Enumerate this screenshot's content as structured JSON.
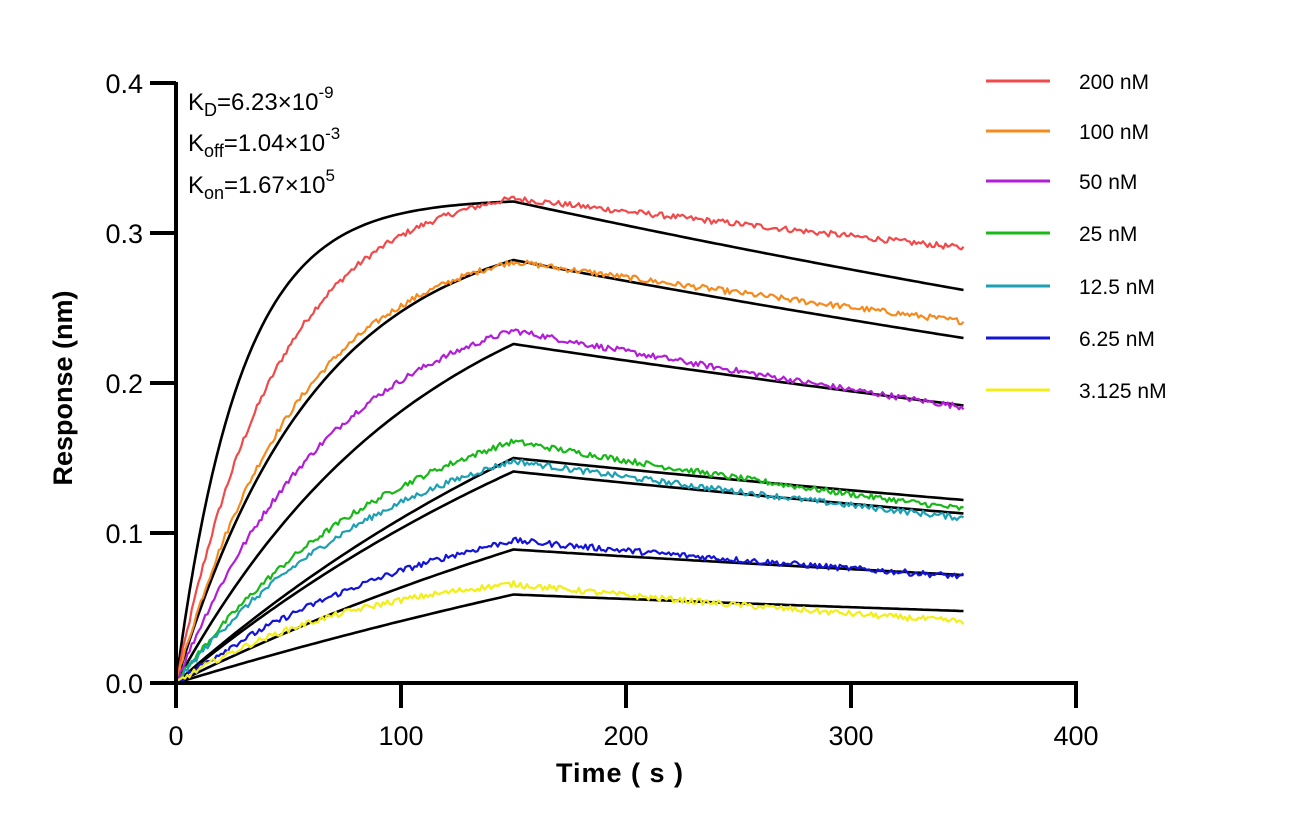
{
  "chart_data": {
    "type": "line",
    "title": "",
    "xlabel": "Time ( s )",
    "ylabel": "Response (nm)",
    "xlim": [
      0,
      400
    ],
    "ylim": [
      0,
      0.4
    ],
    "xticks": [
      "0",
      "100",
      "200",
      "300",
      "400"
    ],
    "yticks": [
      "0.0",
      "0.1",
      "0.2",
      "0.3",
      "0.4"
    ],
    "grid": false,
    "legend_position": "top-right",
    "annotations": [
      {
        "base": "K",
        "sub": "D",
        "value": "=6.23×10",
        "exp": "-9"
      },
      {
        "base": "K",
        "sub": "off",
        "value": "=1.04×10",
        "exp": "-3"
      },
      {
        "base": "K",
        "sub": "on",
        "value": "=1.67×10",
        "exp": "5"
      }
    ],
    "association_end": 150,
    "time_end": 350,
    "series": [
      {
        "name": "200 nM",
        "color": "#f04a4a",
        "peak": 0.323,
        "end": 0.29,
        "fit_peak": 0.321,
        "fit_end": 0.262,
        "fit_rate": 0.035,
        "data_rate": 0.022,
        "shape": 0.0
      },
      {
        "name": "100 nM",
        "color": "#f58a1f",
        "peak": 0.281,
        "end": 0.241,
        "fit_peak": 0.282,
        "fit_end": 0.23,
        "fit_rate": 0.016,
        "data_rate": 0.018,
        "shape": 0.0
      },
      {
        "name": "50 nM",
        "color": "#b21ed6",
        "peak": 0.235,
        "end": 0.184,
        "fit_peak": 0.226,
        "fit_end": 0.185,
        "fit_rate": 0.009,
        "data_rate": 0.014,
        "shape": 0.0
      },
      {
        "name": "25 nM",
        "color": "#18b818",
        "peak": 0.161,
        "end": 0.116,
        "fit_peak": 0.15,
        "fit_end": 0.122,
        "fit_rate": 0.004,
        "data_rate": 0.01,
        "shape": 0.0
      },
      {
        "name": "12.5 nM",
        "color": "#1ea0b4",
        "peak": 0.148,
        "end": 0.11,
        "fit_peak": 0.141,
        "fit_end": 0.113,
        "fit_rate": 0.004,
        "data_rate": 0.01,
        "shape": 0.0
      },
      {
        "name": "6.25 nM",
        "color": "#1414d6",
        "peak": 0.095,
        "end": 0.071,
        "fit_peak": 0.089,
        "fit_end": 0.072,
        "fit_rate": 0.003,
        "data_rate": 0.008,
        "shape": 0.0
      },
      {
        "name": "3.125 nM",
        "color": "#f2ee1a",
        "peak": 0.066,
        "end": 0.041,
        "fit_peak": 0.059,
        "fit_end": 0.048,
        "fit_rate": 0.002,
        "data_rate": 0.012,
        "shape": 0.0
      }
    ]
  }
}
